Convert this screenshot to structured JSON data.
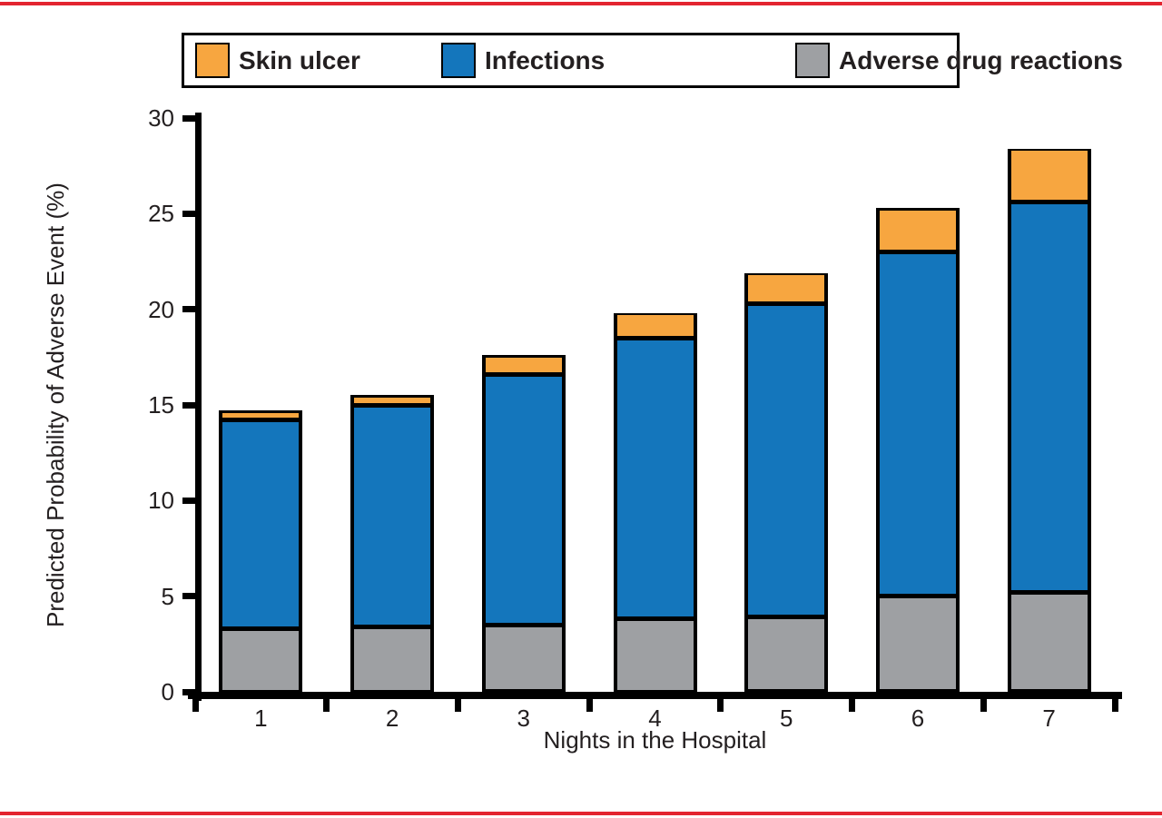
{
  "figure": {
    "background": "#FFFFFF",
    "accent_rule_color": "#E32530",
    "axis_color": "#000000",
    "text_color": "#231F20"
  },
  "chart_data": {
    "type": "bar",
    "stacked": true,
    "title": "",
    "xlabel": "Nights in the Hospital",
    "ylabel": "Predicted Probability of Adverse Event (%)",
    "categories": [
      "1",
      "2",
      "3",
      "4",
      "5",
      "6",
      "7"
    ],
    "ylim": [
      0,
      30
    ],
    "yticks": [
      0,
      5,
      10,
      15,
      20,
      25,
      30
    ],
    "ytick_labels": [
      "0",
      "5",
      "10",
      "15",
      "20",
      "25",
      "30"
    ],
    "grid": false,
    "legend_position": "top",
    "bar_outline_color": "#000000",
    "series": [
      {
        "name": "Skin ulcer",
        "color": "#F7A640",
        "values": [
          0.5,
          0.5,
          1.0,
          1.3,
          1.6,
          2.3,
          2.8
        ]
      },
      {
        "name": "Infections",
        "color": "#1476BC",
        "values": [
          10.9,
          11.6,
          13.1,
          14.7,
          16.4,
          18.0,
          20.4
        ]
      },
      {
        "name": "Adverse drug reactions",
        "color": "#9EA0A3",
        "values": [
          3.3,
          3.4,
          3.5,
          3.8,
          3.9,
          5.0,
          5.2
        ]
      }
    ],
    "stack_order_bottom_to_top": [
      "Adverse drug reactions",
      "Infections",
      "Skin ulcer"
    ],
    "stacked_totals": [
      14.7,
      15.5,
      17.6,
      19.8,
      21.9,
      25.3,
      28.4
    ]
  }
}
